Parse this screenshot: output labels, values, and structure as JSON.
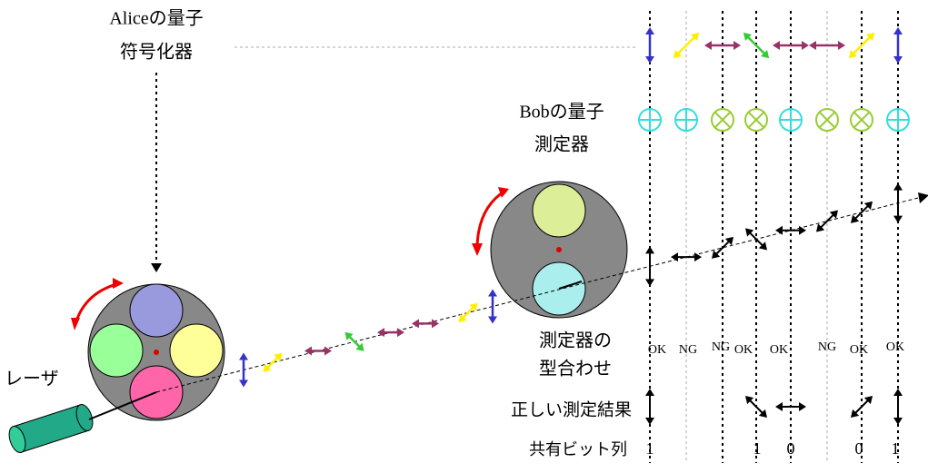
{
  "alice_label": {
    "line1": "Aliceの量子",
    "line2": "符号化器"
  },
  "bob_label": {
    "line1": "Bobの量子",
    "line2": "測定器"
  },
  "match_label": {
    "line1": "測定器の",
    "line2": "型合わせ"
  },
  "laser_label": "レーザ",
  "result_label": "正しい測定結果",
  "bits_label": "共有ビット列",
  "match_results": [
    "OK",
    "NG",
    "NG",
    "OK",
    "OK",
    "NG",
    "OK",
    "OK"
  ],
  "shared_bits": [
    1,
    1,
    0,
    0,
    1
  ]
}
